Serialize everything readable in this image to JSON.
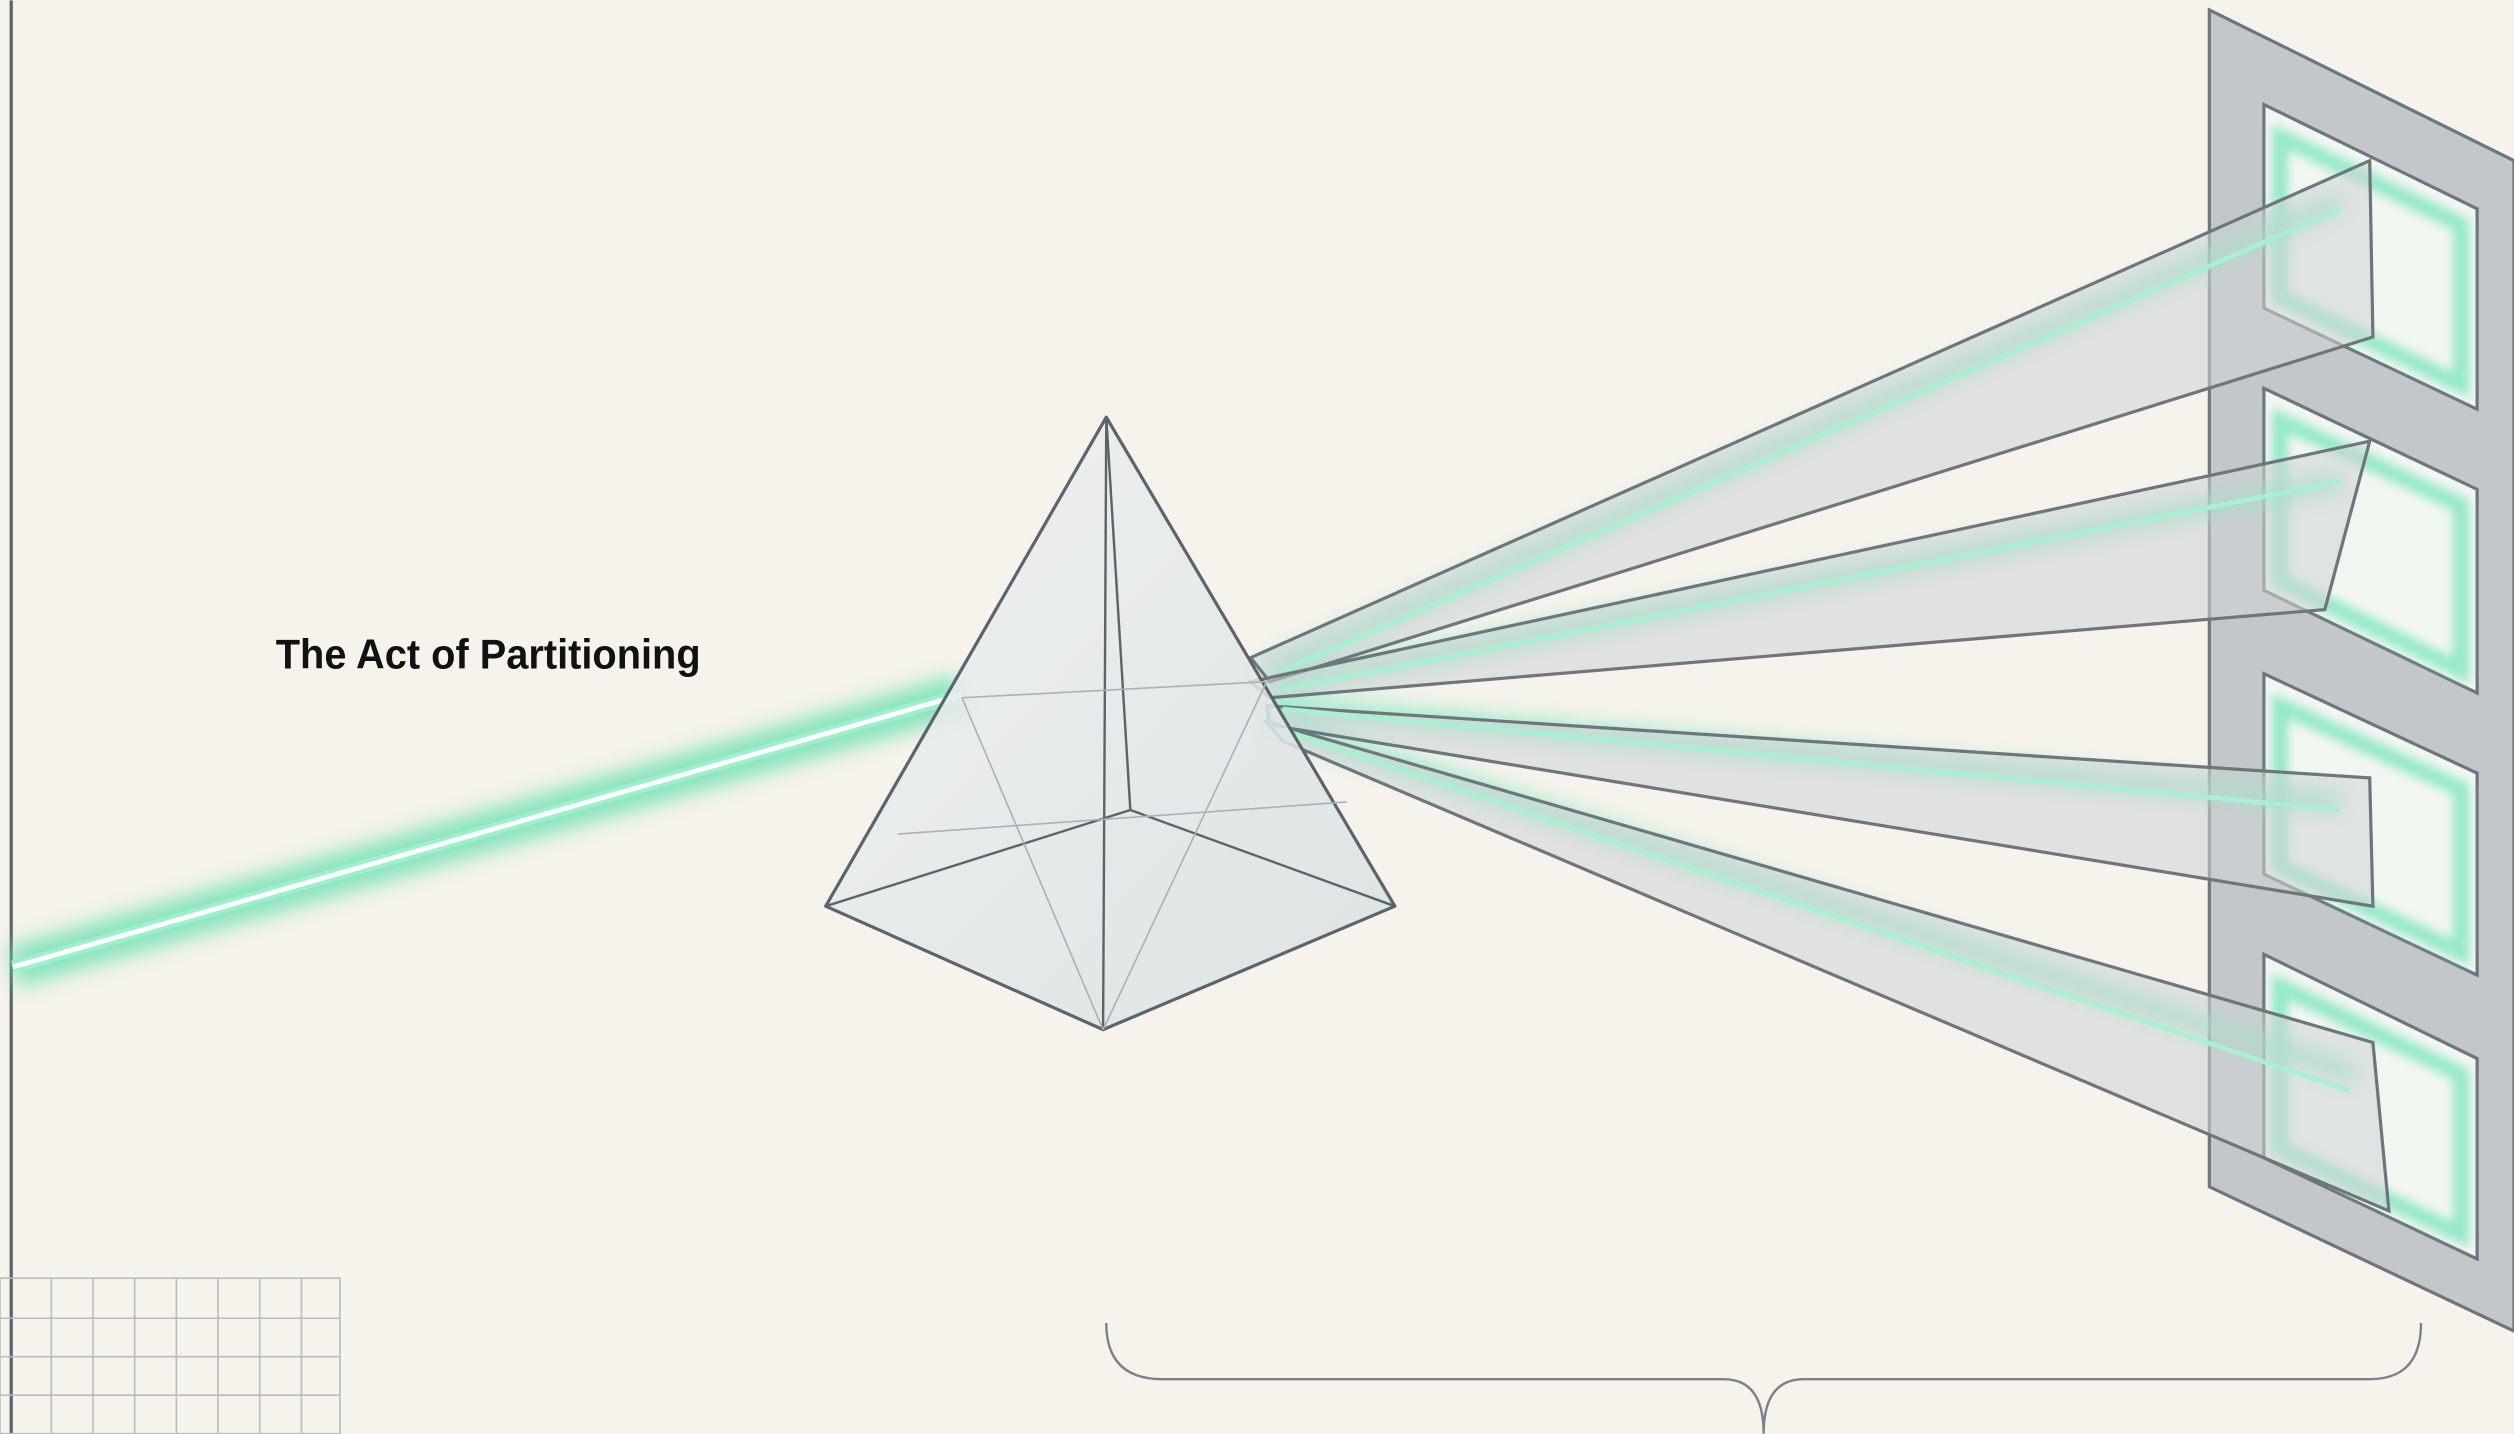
{
  "title": "The Act of Partitioning"
}
